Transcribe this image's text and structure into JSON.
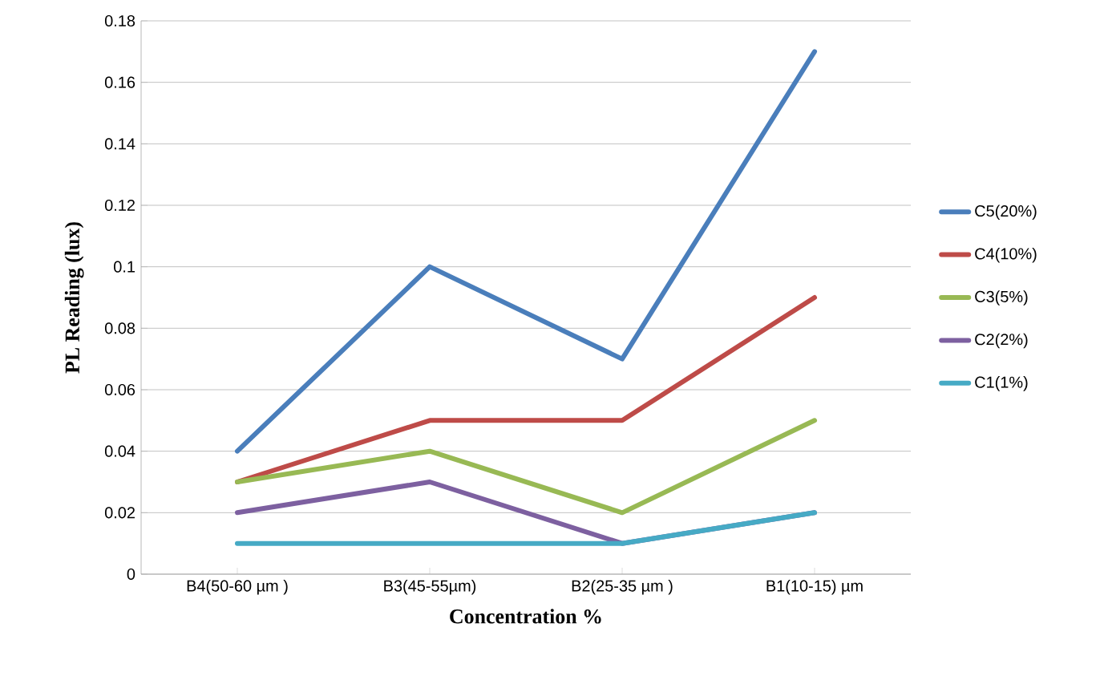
{
  "chart_data": {
    "type": "line",
    "xlabel": "Concentration %",
    "ylabel": "PL Reading (lux)",
    "categories": [
      "B4(50-60 µm )",
      "B3(45-55µm)",
      "B2(25-35 µm )",
      "B1(10-15) µm"
    ],
    "series": [
      {
        "name": "C5(20%)",
        "color": "#4a7ebb",
        "values": [
          0.04,
          0.1,
          0.07,
          0.17
        ]
      },
      {
        "name": "C4(10%)",
        "color": "#be4b48",
        "values": [
          0.03,
          0.05,
          0.05,
          0.09
        ]
      },
      {
        "name": "C3(5%)",
        "color": "#98b954",
        "values": [
          0.03,
          0.04,
          0.02,
          0.05
        ]
      },
      {
        "name": "C2(2%)",
        "color": "#7d60a0",
        "values": [
          0.02,
          0.03,
          0.01,
          0.02
        ]
      },
      {
        "name": "C1(1%)",
        "color": "#46aac5",
        "values": [
          0.01,
          0.01,
          0.01,
          0.02
        ]
      }
    ],
    "ylim": [
      0,
      0.18
    ],
    "yticks": [
      0,
      0.02,
      0.04,
      0.06,
      0.08,
      0.1,
      0.12,
      0.14,
      0.16,
      0.18
    ],
    "grid": "y",
    "legend": "right",
    "marker": "none",
    "line_style": "solid"
  }
}
